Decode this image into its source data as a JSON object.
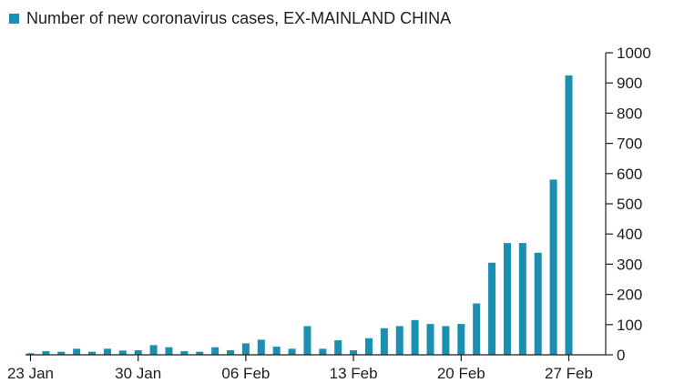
{
  "colors": {
    "bar": "#1b8fb0",
    "axis": "#1e1e1e",
    "text": "#1e1e1e",
    "background": "#ffffff"
  },
  "chart_data": {
    "type": "bar",
    "title": "",
    "legend": {
      "placement": "top-left",
      "entries": [
        "Number of new coronavirus cases, EX-MAINLAND CHINA"
      ]
    },
    "xlabel": "",
    "ylabel": "",
    "ylim": [
      0,
      1000
    ],
    "y_axis_side": "right",
    "y_ticks": [
      0,
      100,
      200,
      300,
      400,
      500,
      600,
      700,
      800,
      900,
      1000
    ],
    "grid": false,
    "x_tick_labels": [
      "23 Jan",
      "30 Jan",
      "06 Feb",
      "13 Feb",
      "20 Feb",
      "27 Feb"
    ],
    "categories": [
      "23 Jan",
      "24 Jan",
      "25 Jan",
      "26 Jan",
      "27 Jan",
      "28 Jan",
      "29 Jan",
      "30 Jan",
      "31 Jan",
      "01 Feb",
      "02 Feb",
      "03 Feb",
      "04 Feb",
      "05 Feb",
      "06 Feb",
      "07 Feb",
      "08 Feb",
      "09 Feb",
      "10 Feb",
      "11 Feb",
      "12 Feb",
      "13 Feb",
      "14 Feb",
      "15 Feb",
      "16 Feb",
      "17 Feb",
      "18 Feb",
      "19 Feb",
      "20 Feb",
      "21 Feb",
      "22 Feb",
      "23 Feb",
      "24 Feb",
      "25 Feb",
      "26 Feb",
      "27 Feb"
    ],
    "series": [
      {
        "name": "Number of new coronavirus cases, EX-MAINLAND CHINA",
        "values": [
          5,
          12,
          10,
          20,
          10,
          20,
          14,
          15,
          32,
          25,
          12,
          10,
          25,
          15,
          38,
          50,
          27,
          20,
          95,
          20,
          48,
          15,
          55,
          88,
          95,
          115,
          102,
          95,
          102,
          170,
          305,
          370,
          370,
          338,
          580,
          925
        ]
      }
    ]
  }
}
